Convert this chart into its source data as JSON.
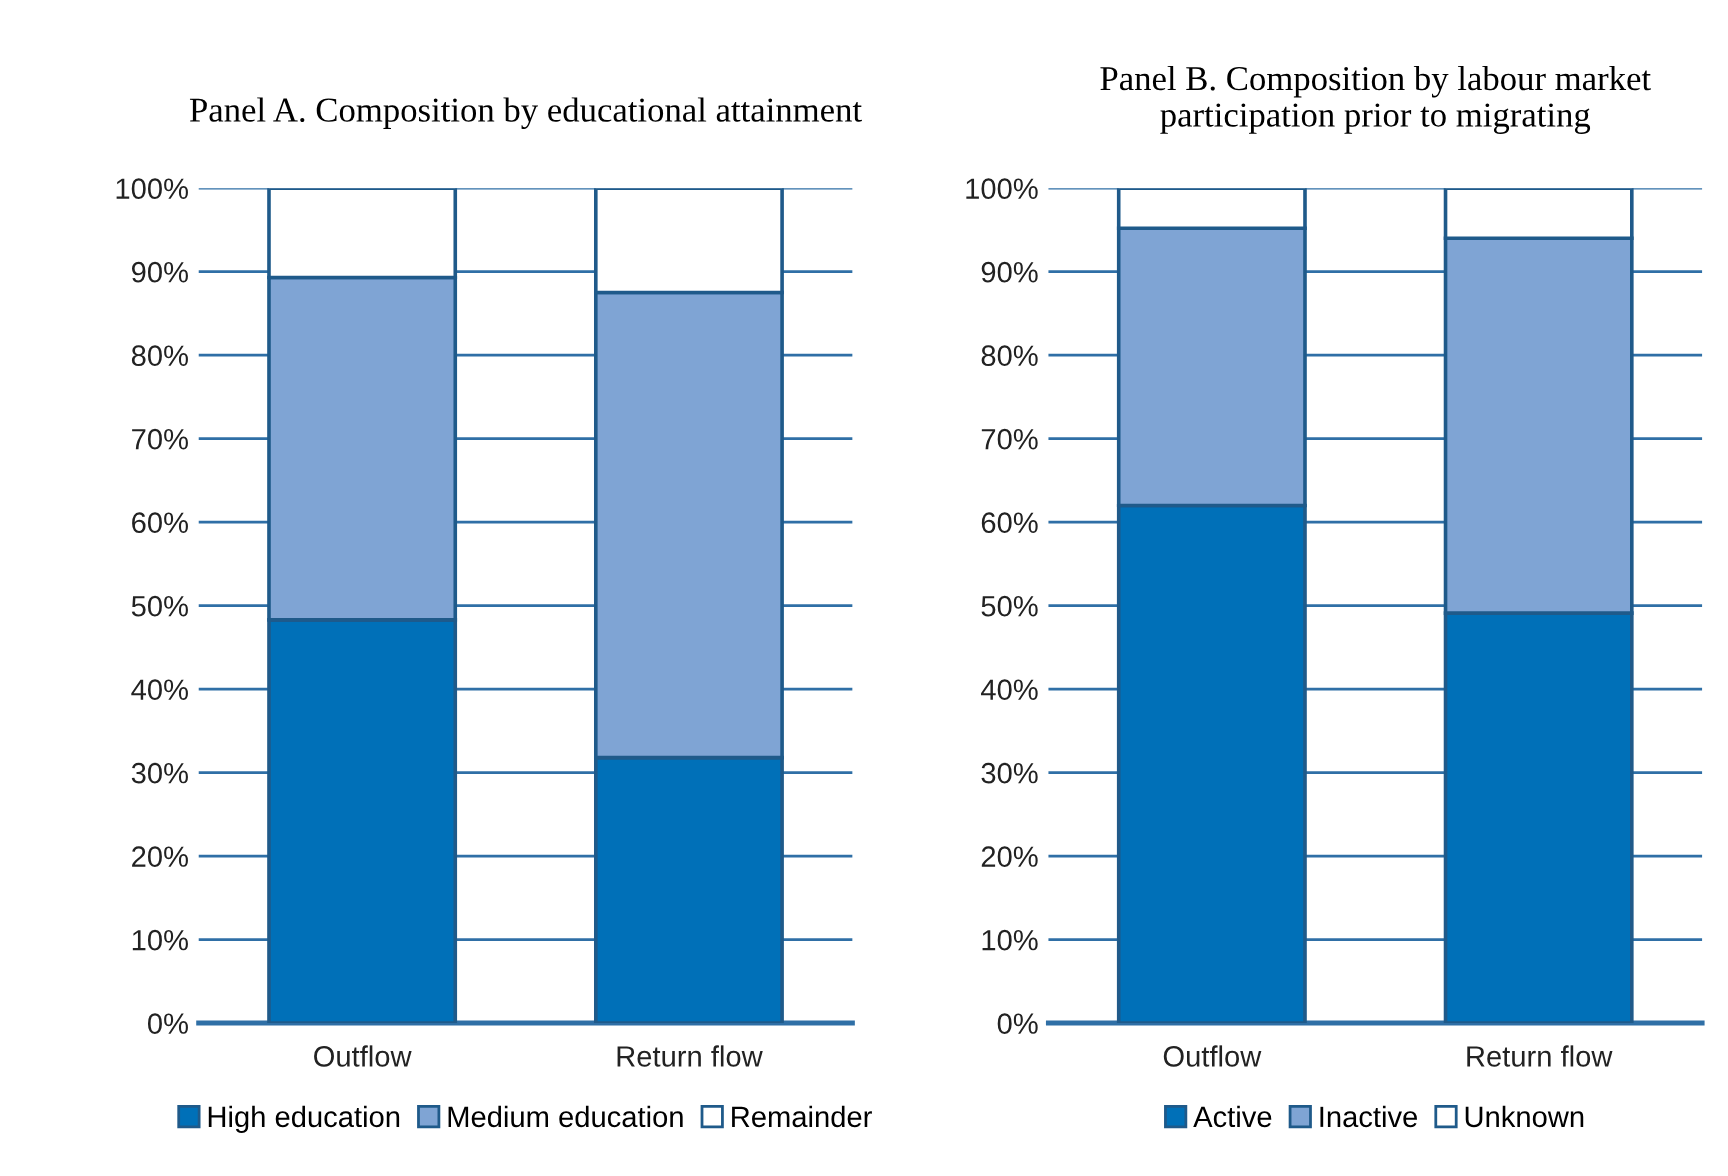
{
  "chart_data": [
    {
      "type": "bar",
      "stacked": true,
      "title": "Panel A. Composition by educational attainment",
      "categories": [
        "Outflow",
        "Return flow"
      ],
      "series": [
        {
          "name": "High education",
          "color": "#0070b8",
          "values": [
            48.3,
            31.8
          ]
        },
        {
          "name": "Medium education",
          "color": "#7fa4d4",
          "values": [
            41.0,
            55.7
          ]
        },
        {
          "name": "Remainder",
          "color": "#ffffff",
          "values": [
            10.7,
            12.5
          ]
        }
      ],
      "ylim": [
        0,
        100
      ],
      "yticks": [
        {
          "value": 0,
          "label": "0%"
        },
        {
          "value": 10,
          "label": "10%"
        },
        {
          "value": 20,
          "label": "20%"
        },
        {
          "value": 30,
          "label": "30%"
        },
        {
          "value": 40,
          "label": "40%"
        },
        {
          "value": 50,
          "label": "50%"
        },
        {
          "value": 60,
          "label": "60%"
        },
        {
          "value": 70,
          "label": "70%"
        },
        {
          "value": 80,
          "label": "80%"
        },
        {
          "value": 90,
          "label": "90%"
        },
        {
          "value": 100,
          "label": "100%"
        }
      ],
      "grid": "y",
      "legend": "bottom"
    },
    {
      "type": "bar",
      "stacked": true,
      "title": "Panel B. Composition by labour market participation prior to migrating",
      "categories": [
        "Outflow",
        "Return flow"
      ],
      "series": [
        {
          "name": "Active",
          "color": "#0070b8",
          "values": [
            62.0,
            49.1
          ]
        },
        {
          "name": "Inactive",
          "color": "#7fa4d4",
          "values": [
            33.2,
            44.9
          ]
        },
        {
          "name": "Unknown",
          "color": "#ffffff",
          "values": [
            4.8,
            6.0
          ]
        }
      ],
      "ylim": [
        0,
        100
      ],
      "yticks": [
        {
          "value": 0,
          "label": "0%"
        },
        {
          "value": 10,
          "label": "10%"
        },
        {
          "value": 20,
          "label": "20%"
        },
        {
          "value": 30,
          "label": "30%"
        },
        {
          "value": 40,
          "label": "40%"
        },
        {
          "value": 50,
          "label": "50%"
        },
        {
          "value": 60,
          "label": "60%"
        },
        {
          "value": 70,
          "label": "70%"
        },
        {
          "value": 80,
          "label": "80%"
        },
        {
          "value": 90,
          "label": "90%"
        },
        {
          "value": 100,
          "label": "100%"
        }
      ],
      "grid": "y",
      "legend": "bottom"
    }
  ]
}
